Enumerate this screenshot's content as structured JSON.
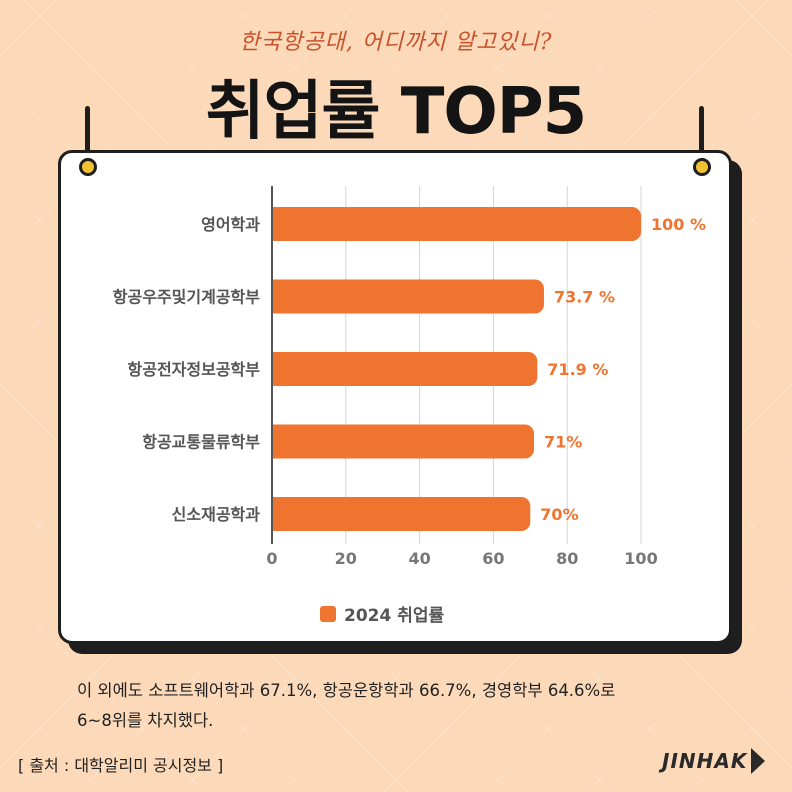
{
  "header": {
    "subtitle": "한국항공대, 어디까지 알고있니?",
    "title": "취업률 TOP5"
  },
  "colors": {
    "accent": "#ee7430",
    "title": "#141414",
    "subtitle": "#c8512b",
    "background": "#fcd9b8"
  },
  "chart_data": {
    "type": "bar",
    "orientation": "horizontal",
    "categories": [
      "영어학과",
      "항공우주및기계공학부",
      "항공전자정보공학부",
      "항공교통물류학부",
      "신소재공학과"
    ],
    "series": [
      {
        "name": "2024 취업률",
        "values": [
          100,
          73.7,
          71.9,
          71,
          70
        ]
      }
    ],
    "value_labels": [
      "100 %",
      "73.7 %",
      "71.9 %",
      "71%",
      "70%"
    ],
    "xlim": [
      0,
      100
    ],
    "xticks": [
      "0",
      "20",
      "40",
      "60",
      "80",
      "100"
    ],
    "grid": true,
    "legend_position": "bottom"
  },
  "legend": {
    "label": "2024 취업률"
  },
  "note": {
    "line1": "이 외에도 소프트웨어학과 67.1%, 항공운항학과 66.7%, 경영학부 64.6%로",
    "line2": "6~8위를 차지했다."
  },
  "footer": {
    "source": "[ 출처 : 대학알리미 공시정보 ]",
    "brand": "JINHAK"
  }
}
